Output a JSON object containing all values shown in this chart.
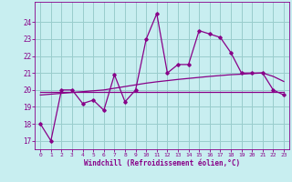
{
  "xlabel": "Windchill (Refroidissement éolien,°C)",
  "bg_color": "#c8eef0",
  "grid_color": "#99cccc",
  "line_color": "#880088",
  "x_values": [
    0,
    1,
    2,
    3,
    4,
    5,
    6,
    7,
    8,
    9,
    10,
    11,
    12,
    13,
    14,
    15,
    16,
    17,
    18,
    19,
    20,
    21,
    22,
    23
  ],
  "y_main": [
    18,
    17,
    20,
    20,
    19.2,
    19.4,
    18.8,
    20.9,
    19.3,
    20,
    23,
    24.5,
    21,
    21.5,
    21.5,
    23.5,
    23.3,
    23.1,
    22.2,
    21,
    21,
    21,
    20,
    19.7
  ],
  "y_flat": [
    19.9,
    19.9,
    19.9,
    19.9,
    19.9,
    19.9,
    19.9,
    19.9,
    19.9,
    19.9,
    19.9,
    19.9,
    19.9,
    19.9,
    19.9,
    19.9,
    19.9,
    19.9,
    19.9,
    19.9,
    19.9,
    19.9,
    19.9,
    19.9
  ],
  "y_trend": [
    19.7,
    19.75,
    19.8,
    19.85,
    19.9,
    19.95,
    20.0,
    20.1,
    20.2,
    20.3,
    20.4,
    20.48,
    20.55,
    20.62,
    20.68,
    20.74,
    20.8,
    20.85,
    20.9,
    20.93,
    20.97,
    21.0,
    20.8,
    20.5
  ],
  "ylim": [
    16.5,
    25.2
  ],
  "xlim": [
    -0.5,
    23.5
  ],
  "yticks": [
    17,
    18,
    19,
    20,
    21,
    22,
    23,
    24
  ],
  "xticks": [
    0,
    1,
    2,
    3,
    4,
    5,
    6,
    7,
    8,
    9,
    10,
    11,
    12,
    13,
    14,
    15,
    16,
    17,
    18,
    19,
    20,
    21,
    22,
    23
  ]
}
